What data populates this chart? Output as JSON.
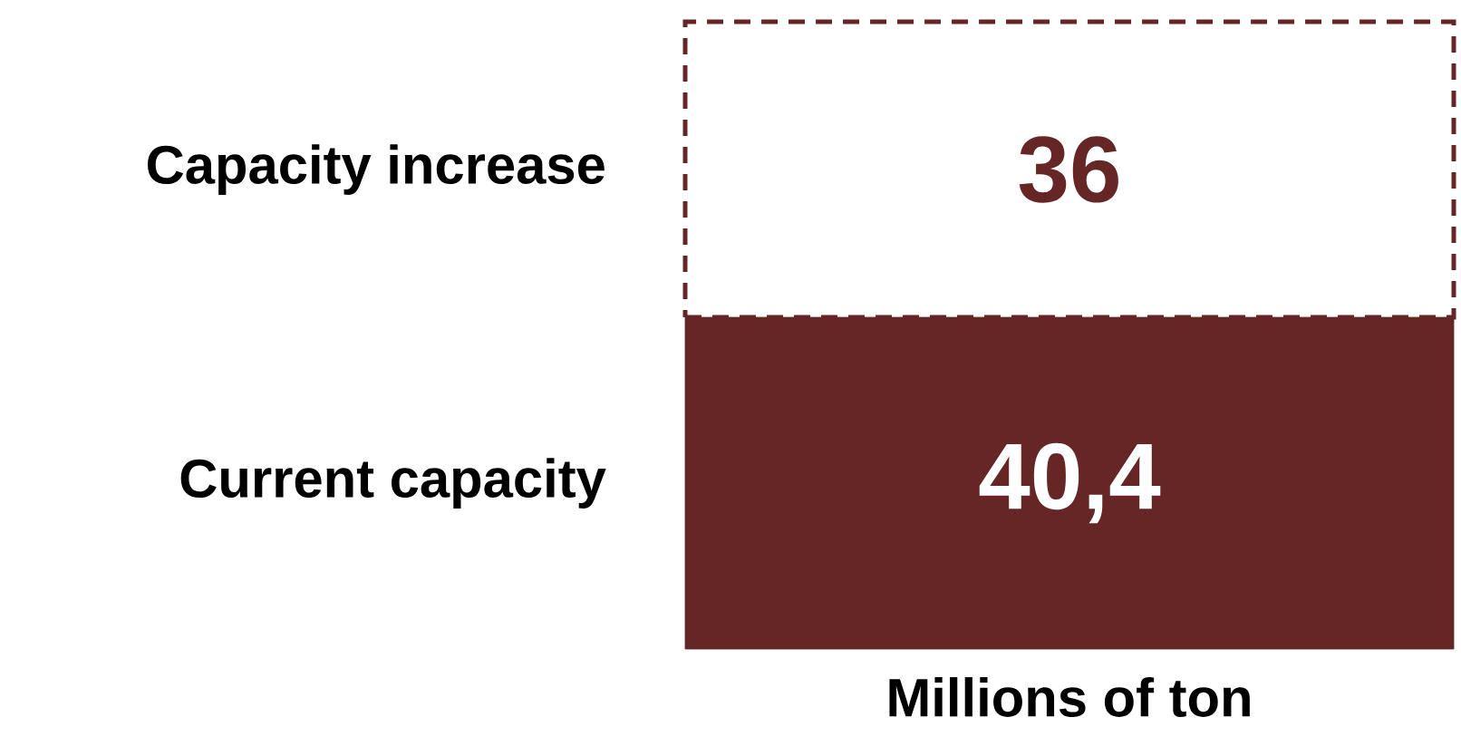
{
  "chart_data": {
    "type": "bar",
    "stacked": true,
    "categories": [
      null
    ],
    "xlabel": "Millions of ton",
    "series": [
      {
        "name": "Current capacity",
        "color": "#662626",
        "values": [
          40.4
        ],
        "value_labels": [
          "40,4"
        ],
        "line_style": "solid"
      },
      {
        "name": "Capacity increase",
        "color": "#662626",
        "values": [
          36
        ],
        "value_labels": [
          "36"
        ],
        "line_style": "dashed"
      }
    ]
  }
}
